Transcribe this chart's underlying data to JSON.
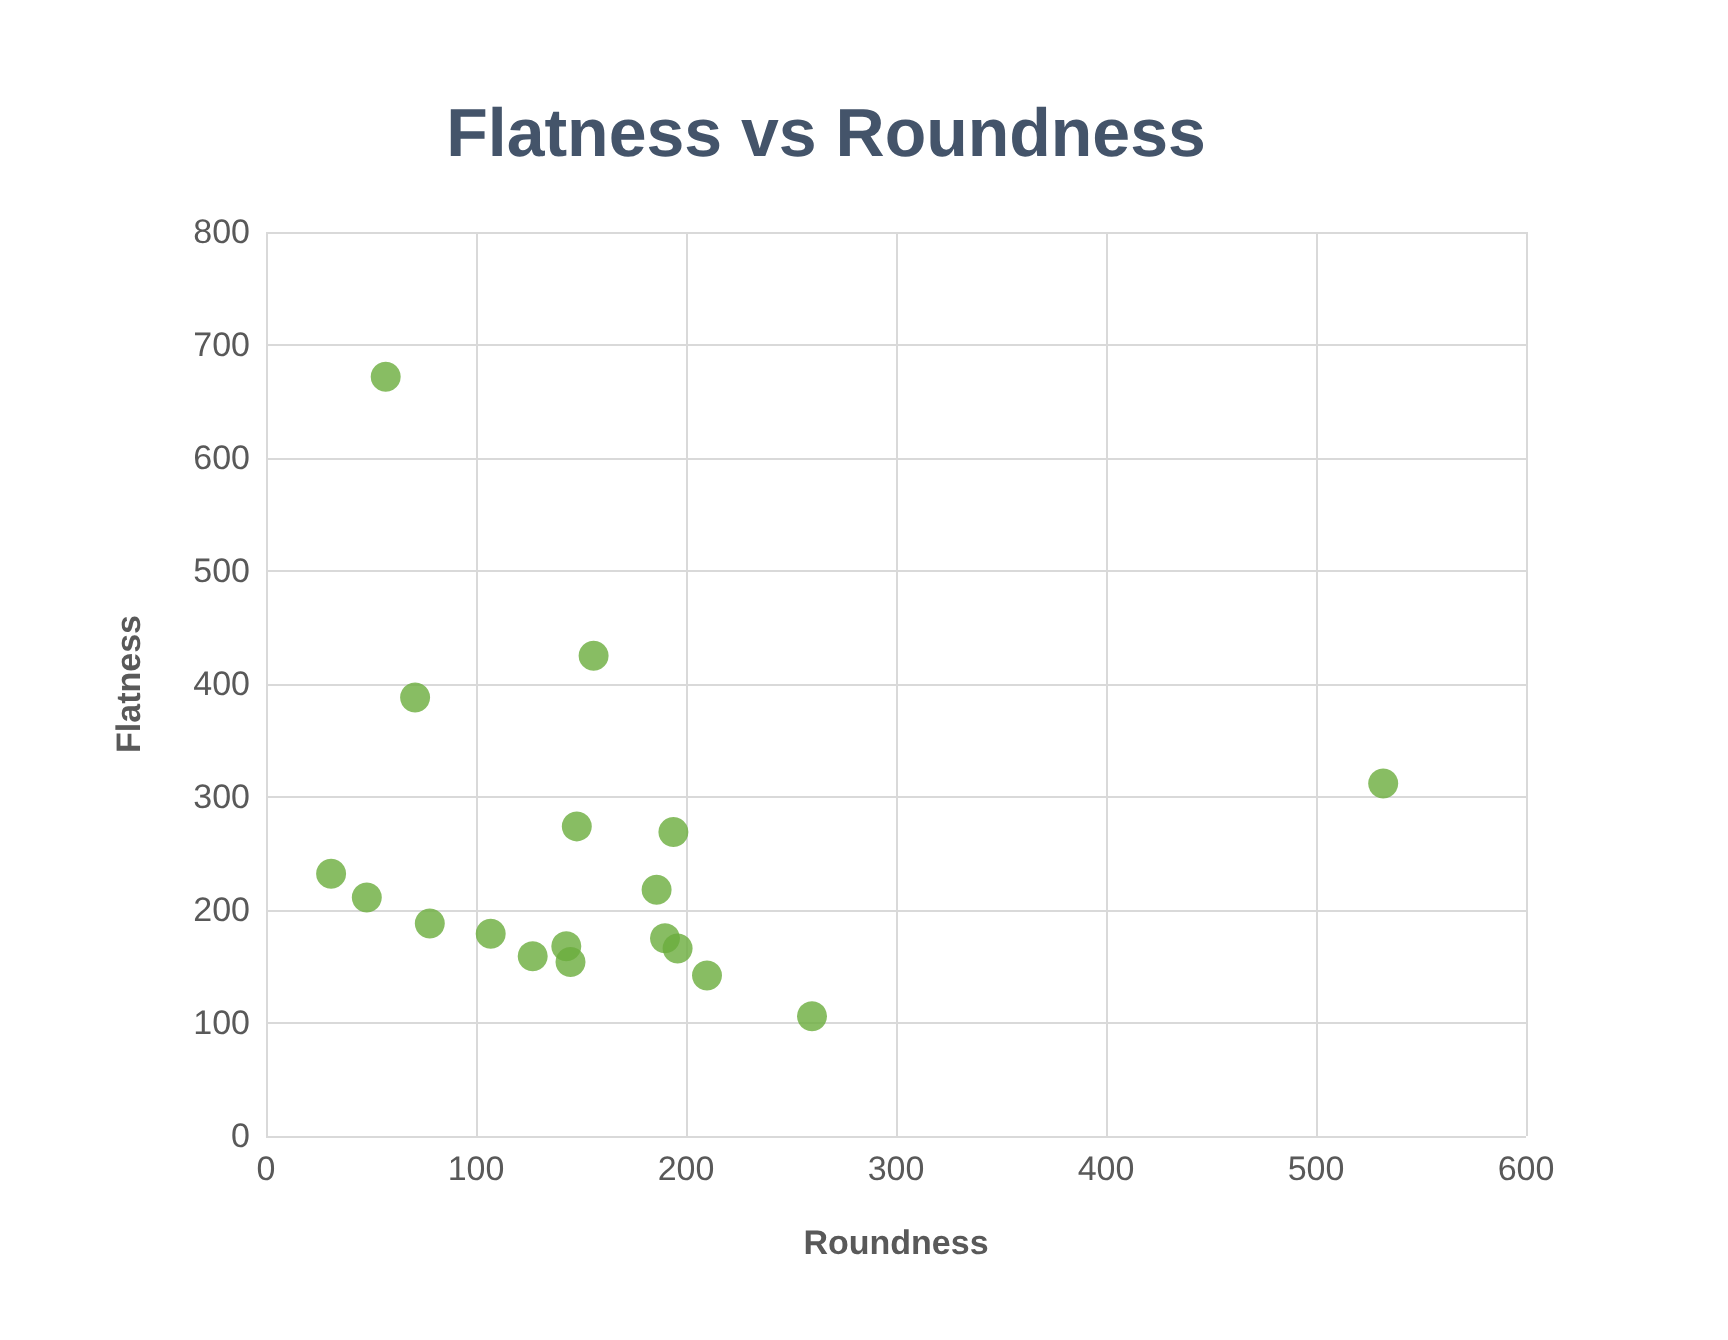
{
  "chart_data": {
    "type": "scatter",
    "title": "Flatness vs Roundness",
    "xlabel": "Roundness",
    "ylabel": "Flatness",
    "x": [
      57,
      71,
      156,
      31,
      48,
      78,
      107,
      127,
      143,
      145,
      148,
      194,
      186,
      190,
      196,
      210,
      260,
      532
    ],
    "values": [
      672,
      388,
      425,
      232,
      211,
      188,
      179,
      159,
      168,
      154,
      274,
      269,
      218,
      175,
      166,
      142,
      106,
      312
    ],
    "color": "#6aac3c",
    "marker": "circle",
    "xlim": [
      0,
      600
    ],
    "xticks": [
      0,
      100,
      200,
      300,
      400,
      500,
      600
    ],
    "ylim": [
      0,
      800
    ],
    "yticks": [
      0,
      100,
      200,
      300,
      400,
      500,
      600,
      700,
      800
    ],
    "grid": true
  }
}
